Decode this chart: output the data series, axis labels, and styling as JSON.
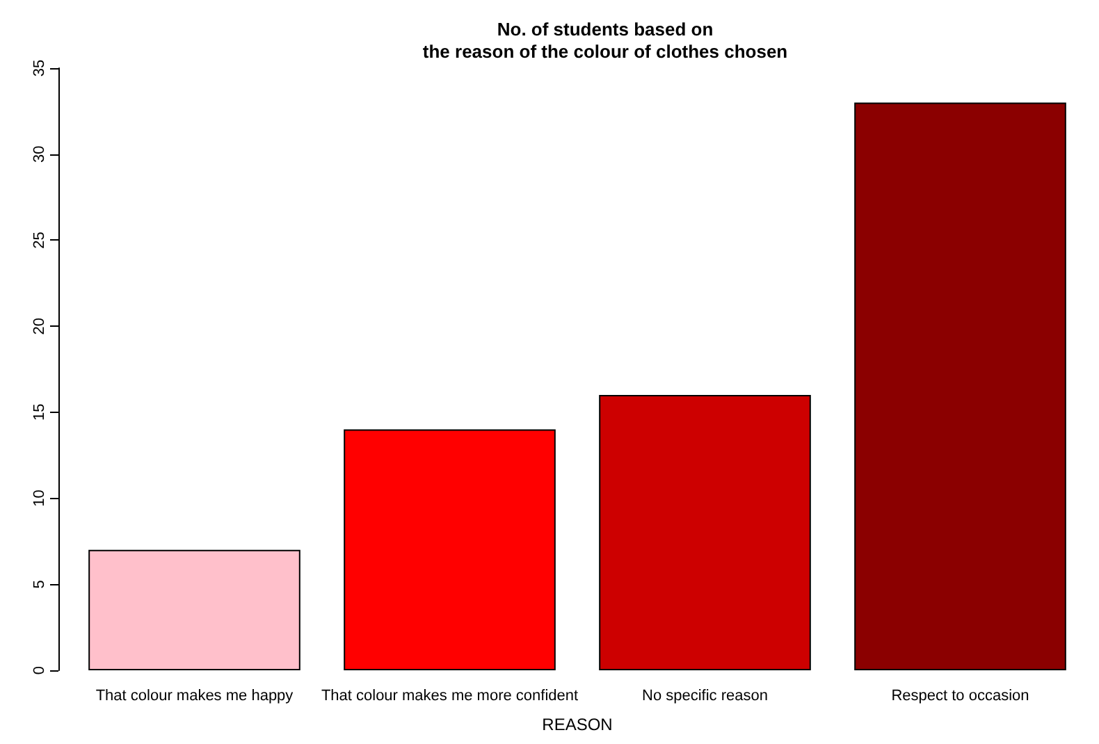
{
  "chart_data": {
    "type": "bar",
    "title": "No. of students based on\nthe reason of the colour of clothes chosen",
    "xlabel": "REASON",
    "categories": [
      "That colour makes me happy",
      "That colour makes me more confident",
      "No specific reason",
      "Respect to occasion"
    ],
    "values": [
      7,
      14,
      16,
      33
    ],
    "colors": [
      "#ffc0cb",
      "#ff0000",
      "#cd0000",
      "#8b0000"
    ],
    "ylim": [
      0,
      35
    ],
    "yticks": [
      0,
      5,
      10,
      15,
      20,
      25,
      30,
      35
    ],
    "grid": false
  }
}
